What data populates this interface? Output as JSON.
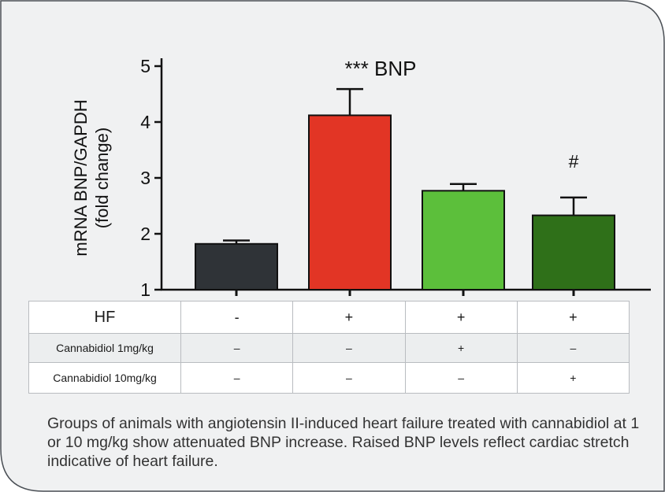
{
  "chart_data": {
    "type": "bar",
    "annotation": "*** BNP",
    "ylabel": "mRNA BNP/GAPDH",
    "ylabel_sub": "(fold change)",
    "ylim": [
      1,
      5
    ],
    "yticks": [
      1,
      2,
      3,
      4,
      5
    ],
    "categories": [
      "HF-",
      "HF+",
      "HF+ CBD 1mg/kg",
      "HF+ CBD 10mg/kg"
    ],
    "values": [
      1.82,
      4.12,
      2.77,
      2.33
    ],
    "errors": [
      0.06,
      0.47,
      0.12,
      0.32
    ],
    "significance": [
      "",
      "",
      "",
      "#"
    ],
    "colors": [
      "#2f3337",
      "#e23525",
      "#5cbf3b",
      "#2f7019"
    ],
    "grid": false
  },
  "table": {
    "rows": [
      {
        "label": "HF",
        "cells": [
          "-",
          "+",
          "+",
          "+"
        ]
      },
      {
        "label": "Cannabidiol 1mg/kg",
        "cells": [
          "–",
          "–",
          "+",
          "–"
        ]
      },
      {
        "label": "Cannabidiol 10mg/kg",
        "cells": [
          "–",
          "–",
          "–",
          "+"
        ]
      }
    ]
  },
  "caption": "Groups of animals with angiotensin II-induced heart failure treated with cannabidiol at 1 or 10 mg/kg show attenuated BNP increase. Raised BNP levels reflect cardiac stretch indicative of heart failure.",
  "colors": {
    "card_background": "#f0f1f2",
    "card_border": "#4a4f55"
  }
}
